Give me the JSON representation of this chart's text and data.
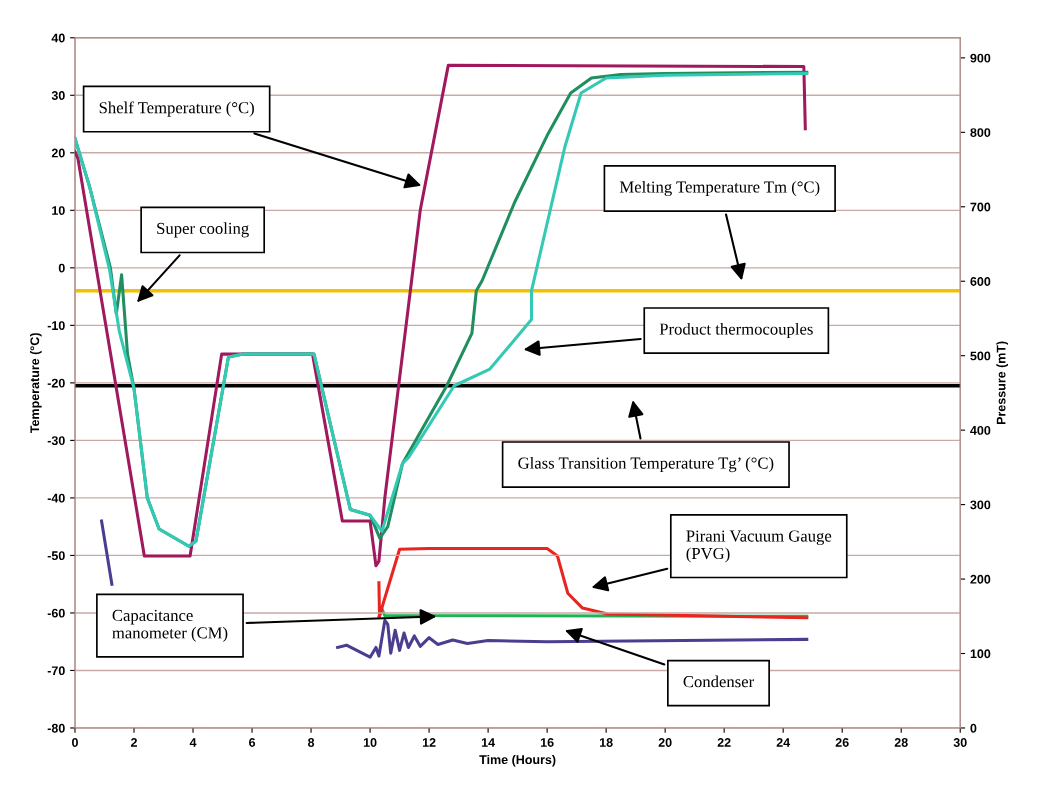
{
  "chart_data": {
    "type": "line",
    "xlabel": "Time (Hours)",
    "ylabel": "Temperature (°C)",
    "y2label": "Pressure (mT)",
    "xlim": [
      0,
      30
    ],
    "xticks": [
      0,
      2,
      4,
      6,
      8,
      10,
      12,
      14,
      16,
      18,
      20,
      22,
      24,
      26,
      28,
      30
    ],
    "ylim": [
      -80,
      40
    ],
    "yticks": [
      -80,
      -70,
      -60,
      -50,
      -40,
      -30,
      -20,
      -10,
      0,
      10,
      20,
      30,
      40
    ],
    "y2lim": [
      0,
      927
    ],
    "y2ticks": [
      0,
      100,
      200,
      300,
      400,
      500,
      600,
      700,
      800,
      900
    ],
    "grid": "y",
    "marker": "none",
    "line_style": "solid",
    "legend": false,
    "ref_lines": [
      {
        "axis": "y",
        "value": -4,
        "color": "#f2c200"
      },
      {
        "axis": "y",
        "value": -20.5,
        "color": "#000000"
      }
    ],
    "series": [
      {
        "color": "#4b3d8f",
        "x": [
          0.9,
          1.25,
          5,
          8.9,
          9.2,
          10,
          10.2,
          10.3,
          10.5,
          10.6,
          10.7,
          10.85,
          11,
          11.15,
          11.3,
          11.5,
          11.7,
          12,
          12.3,
          12.8,
          13.3,
          14,
          16,
          24.8
        ],
        "values": [
          -44,
          -55,
          null,
          -66,
          -65.6,
          -67.7,
          -66,
          -67.5,
          -61.3,
          -62,
          -67,
          -63,
          -66.5,
          -63.5,
          -66,
          -64,
          -65.8,
          -64.3,
          -65.5,
          -64.7,
          -65.3,
          -64.8,
          -65,
          -64.6
        ]
      },
      {
        "color": "#a0185e",
        "x": [
          0,
          0.1,
          2.35,
          3.9,
          4.97,
          8.05,
          9.06,
          10.0,
          10.2,
          10.3,
          10.5,
          11.7,
          12.65,
          24.7,
          24.75
        ],
        "values": [
          20.2,
          19,
          -50.1,
          -50.1,
          -15,
          -15,
          -44,
          -44,
          -51.8,
          -51,
          -40,
          10,
          35.2,
          35,
          24.2
        ]
      },
      {
        "color": "#1f8f5f",
        "x": [
          0,
          0.5,
          1.2,
          1.4,
          1.58,
          1.78,
          2.0,
          2.45,
          2.85,
          3.86,
          4.1,
          5.2,
          5.7,
          8.1,
          9.33,
          10.0,
          10.33,
          10.6,
          11.1,
          12.6,
          13.45,
          13.6,
          13.8,
          14.9,
          16.0,
          16.8,
          17.5,
          18.5,
          20,
          24.8
        ],
        "values": [
          22.5,
          14,
          0,
          -8,
          -1.2,
          -15,
          -21,
          -40,
          -45.4,
          -48.4,
          -47.5,
          -15.5,
          -15,
          -15,
          -42,
          -43,
          -47,
          -45,
          -34,
          -20.5,
          -11.4,
          -4,
          -2.2,
          11.4,
          23,
          30.4,
          33,
          33.6,
          33.8,
          34
        ]
      },
      {
        "color": "#33c9b4",
        "x": [
          0,
          0.5,
          1.17,
          1.5,
          2.0,
          2.45,
          2.85,
          3.86,
          4.1,
          5.2,
          5.7,
          8.1,
          9.33,
          10.0,
          10.4,
          11.1,
          11.3,
          12.85,
          14.06,
          15.47,
          15.47,
          16.6,
          17.15,
          18,
          20,
          24.8
        ],
        "values": [
          22.5,
          14,
          -0.3,
          -11,
          -21,
          -40,
          -45.4,
          -48.4,
          -47.5,
          -15.5,
          -15,
          -15,
          -42,
          -43,
          -45.8,
          -34,
          -33,
          -20.5,
          -17.6,
          -9,
          -4,
          21,
          30.4,
          33,
          33.5,
          33.8
        ]
      },
      {
        "color": "#1db354",
        "axis": "y2",
        "x": [
          10.3,
          10.4,
          10.5,
          24.8
        ],
        "values": [
          150,
          160,
          151,
          150
        ]
      },
      {
        "color": "#e8251f",
        "axis": "y2",
        "x": [
          10.3,
          10.32,
          10.45,
          11.0,
          12,
          16.0,
          16.35,
          16.7,
          17.2,
          18.05,
          24.8
        ],
        "values": [
          195,
          150,
          168,
          240,
          241,
          241,
          231,
          181,
          161,
          153,
          148
        ]
      }
    ],
    "annotations": [
      "Shelf Temperature (°C)",
      "Super cooling",
      "Melting Temperature Tm (°C)",
      "Product thermocouples",
      "Glass Transition Temperature Tg’ (°C)",
      "Pirani Vacuum Gauge\n(PVG)",
      {
        "text": "Capacitance\nmanometer (CM)",
        "x": 12.25,
        "y": -60.6
      },
      "Condenser"
    ]
  }
}
